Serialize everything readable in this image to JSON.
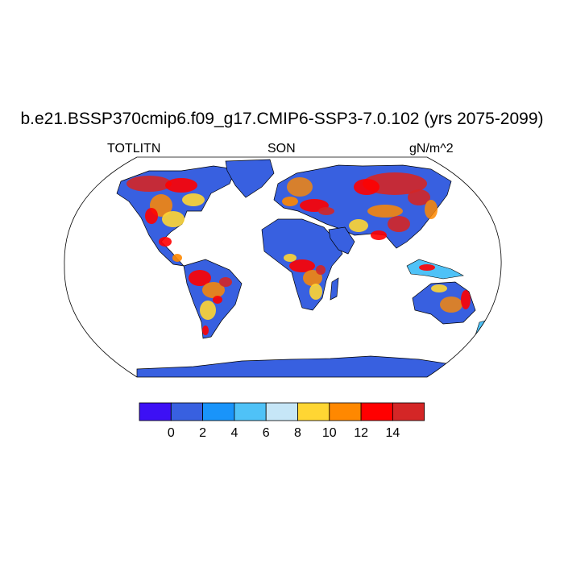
{
  "title": "b.e21.BSSP370cmip6.f09_g17.CMIP6-SSP3-7.0.102 (yrs 2075-2099)",
  "left_string": "TOTLITN",
  "center_string": "SON",
  "units": "gN/m^2",
  "colorbar": {
    "labels": [
      "0",
      "2",
      "4",
      "6",
      "8",
      "10",
      "12",
      "14"
    ],
    "colors": [
      "#3d10f5",
      "#3860e0",
      "#1994fa",
      "#4fc2f7",
      "#c6e6f7",
      "#ffd633",
      "#ff8800",
      "#ff0000",
      "#d42626"
    ]
  },
  "map": {
    "projection": "Robinson",
    "ocean_color": "#ffffff",
    "land_low_color": "#3860e0"
  }
}
